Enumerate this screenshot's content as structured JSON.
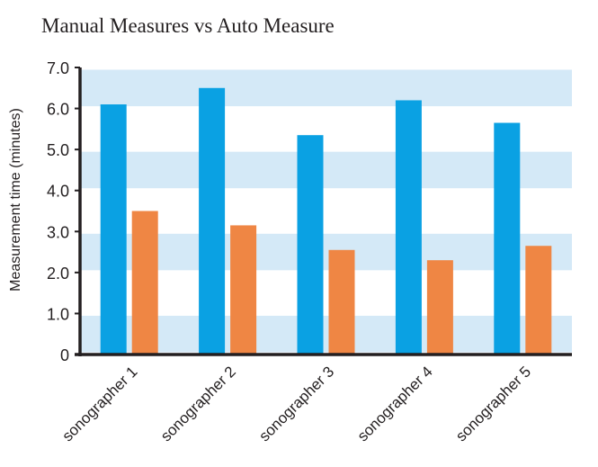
{
  "chart_data": {
    "type": "bar",
    "title": "Manual Measures vs Auto Measure",
    "xlabel": "",
    "ylabel": "Measurement time (minutes)",
    "categories": [
      "sonographer 1",
      "sonographer 2",
      "sonographer 3",
      "sonographer 4",
      "sonographer 5"
    ],
    "series": [
      {
        "values": [
          6.1,
          6.5,
          5.35,
          6.2,
          5.65
        ]
      },
      {
        "values": [
          3.5,
          3.15,
          2.55,
          2.3,
          2.65
        ]
      }
    ],
    "ylim": [
      0,
      7.0
    ],
    "yticks": [
      "0",
      "1.0",
      "2.0",
      "3.0",
      "4.0",
      "5.0",
      "6.0",
      "7.0"
    ],
    "grid": "alternating horizontal bands",
    "legend": "none"
  },
  "colors": {
    "series": [
      "#0aa1e3",
      "#ef8644"
    ],
    "band_light": "#d4e9f7",
    "band_white": "#ffffff",
    "axis": "#231f20"
  }
}
